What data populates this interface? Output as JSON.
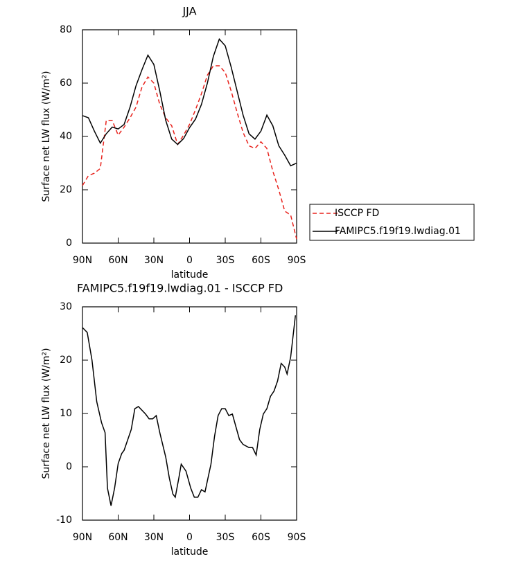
{
  "chart_data": [
    {
      "type": "line",
      "title": "JJA",
      "xlabel": "latitude",
      "ylabel": "Surface net LW flux (W/m²)",
      "x": [
        90,
        85,
        80,
        75,
        70,
        65,
        60,
        55,
        50,
        45,
        40,
        35,
        30,
        25,
        20,
        15,
        10,
        5,
        0,
        -5,
        -10,
        -15,
        -20,
        -25,
        -30,
        -35,
        -40,
        -45,
        -50,
        -55,
        -60,
        -65,
        -70,
        -75,
        -80,
        -85,
        -90
      ],
      "series": [
        {
          "name": "ISCCP FD",
          "color": "#e8221c",
          "dashed": true,
          "values": [
            21.6,
            25.3,
            26.2,
            28,
            46,
            46,
            40.5,
            43.5,
            47,
            51,
            58.5,
            62.3,
            60,
            52,
            47,
            44,
            37,
            40.5,
            44.5,
            50,
            56,
            63,
            66.5,
            66.5,
            64,
            57,
            49,
            41.5,
            36.5,
            35.5,
            38,
            35.5,
            27,
            20,
            12,
            10.5,
            1.5
          ]
        },
        {
          "name": "FAMIPC5.f19f19.lwdiag.01",
          "color": "#000000",
          "dashed": false,
          "values": [
            47.8,
            47,
            42,
            37.5,
            41,
            43.5,
            42.8,
            44.5,
            51,
            59,
            65,
            70.5,
            67,
            57,
            46,
            39,
            37,
            39.2,
            43.3,
            46.5,
            52,
            60,
            70,
            76.5,
            74,
            66,
            57,
            48,
            41,
            39,
            42,
            48,
            44,
            36.5,
            33,
            29,
            30
          ]
        }
      ],
      "xlim": [
        90,
        -90
      ],
      "xticks": [
        {
          "value": 90,
          "label": "90N"
        },
        {
          "value": 60,
          "label": "60N"
        },
        {
          "value": 30,
          "label": "30N"
        },
        0,
        {
          "value": -30,
          "label": "30S"
        },
        {
          "value": -60,
          "label": "60S"
        },
        {
          "value": -90,
          "label": "90S"
        }
      ],
      "ylim": [
        0,
        80
      ],
      "yticks": [
        0,
        20,
        40,
        60,
        80
      ],
      "legend": "right"
    },
    {
      "type": "line",
      "title": "FAMIPC5.f19f19.lwdiag.01 - ISCCP FD",
      "xlabel": "latitude",
      "ylabel": "Surface net LW flux (W/m²)",
      "x": [
        90,
        86,
        82,
        78,
        74,
        71,
        69,
        66,
        63,
        60,
        57,
        55,
        49,
        46,
        43,
        37,
        34,
        31,
        28,
        25,
        20,
        17,
        14,
        12,
        9,
        7,
        3,
        -1,
        -4,
        -7,
        -10,
        -13,
        -18,
        -21,
        -24,
        -27,
        -30,
        -33,
        -36,
        -42,
        -45,
        -50,
        -53,
        -56,
        -59,
        -62,
        -65,
        -68,
        -71,
        -74,
        -77,
        -80,
        -82,
        -85,
        -89
      ],
      "series": [
        {
          "name": "FAMIPC5.f19f19.lwdiag.01 - ISCCP FD",
          "color": "#000000",
          "dashed": false,
          "values": [
            26.1,
            25.2,
            20,
            12.2,
            8.3,
            6.4,
            -4,
            -7.3,
            -4,
            0.6,
            2.5,
            3.1,
            7,
            10.9,
            11.3,
            9.9,
            9,
            9,
            9.6,
            6.4,
            1.8,
            -2.1,
            -5.1,
            -5.7,
            -2.1,
            0.5,
            -0.8,
            -4,
            -5.7,
            -5.7,
            -4.3,
            -4.7,
            0.5,
            5.7,
            9.6,
            10.9,
            10.9,
            9.6,
            9.9,
            5.1,
            4.2,
            3.6,
            3.6,
            2.2,
            7,
            9.9,
            10.9,
            13.2,
            14.2,
            16.1,
            19.4,
            18.7,
            17.4,
            20.6,
            28.4
          ]
        }
      ],
      "xlim": [
        90,
        -90
      ],
      "xticks": [
        {
          "value": 90,
          "label": "90N"
        },
        {
          "value": 60,
          "label": "60N"
        },
        {
          "value": 30,
          "label": "30N"
        },
        0,
        {
          "value": -30,
          "label": "30S"
        },
        {
          "value": -60,
          "label": "60S"
        },
        {
          "value": -90,
          "label": "90S"
        }
      ],
      "ylim": [
        -10,
        30
      ],
      "yticks": [
        -10,
        0,
        10,
        20,
        30
      ]
    }
  ]
}
